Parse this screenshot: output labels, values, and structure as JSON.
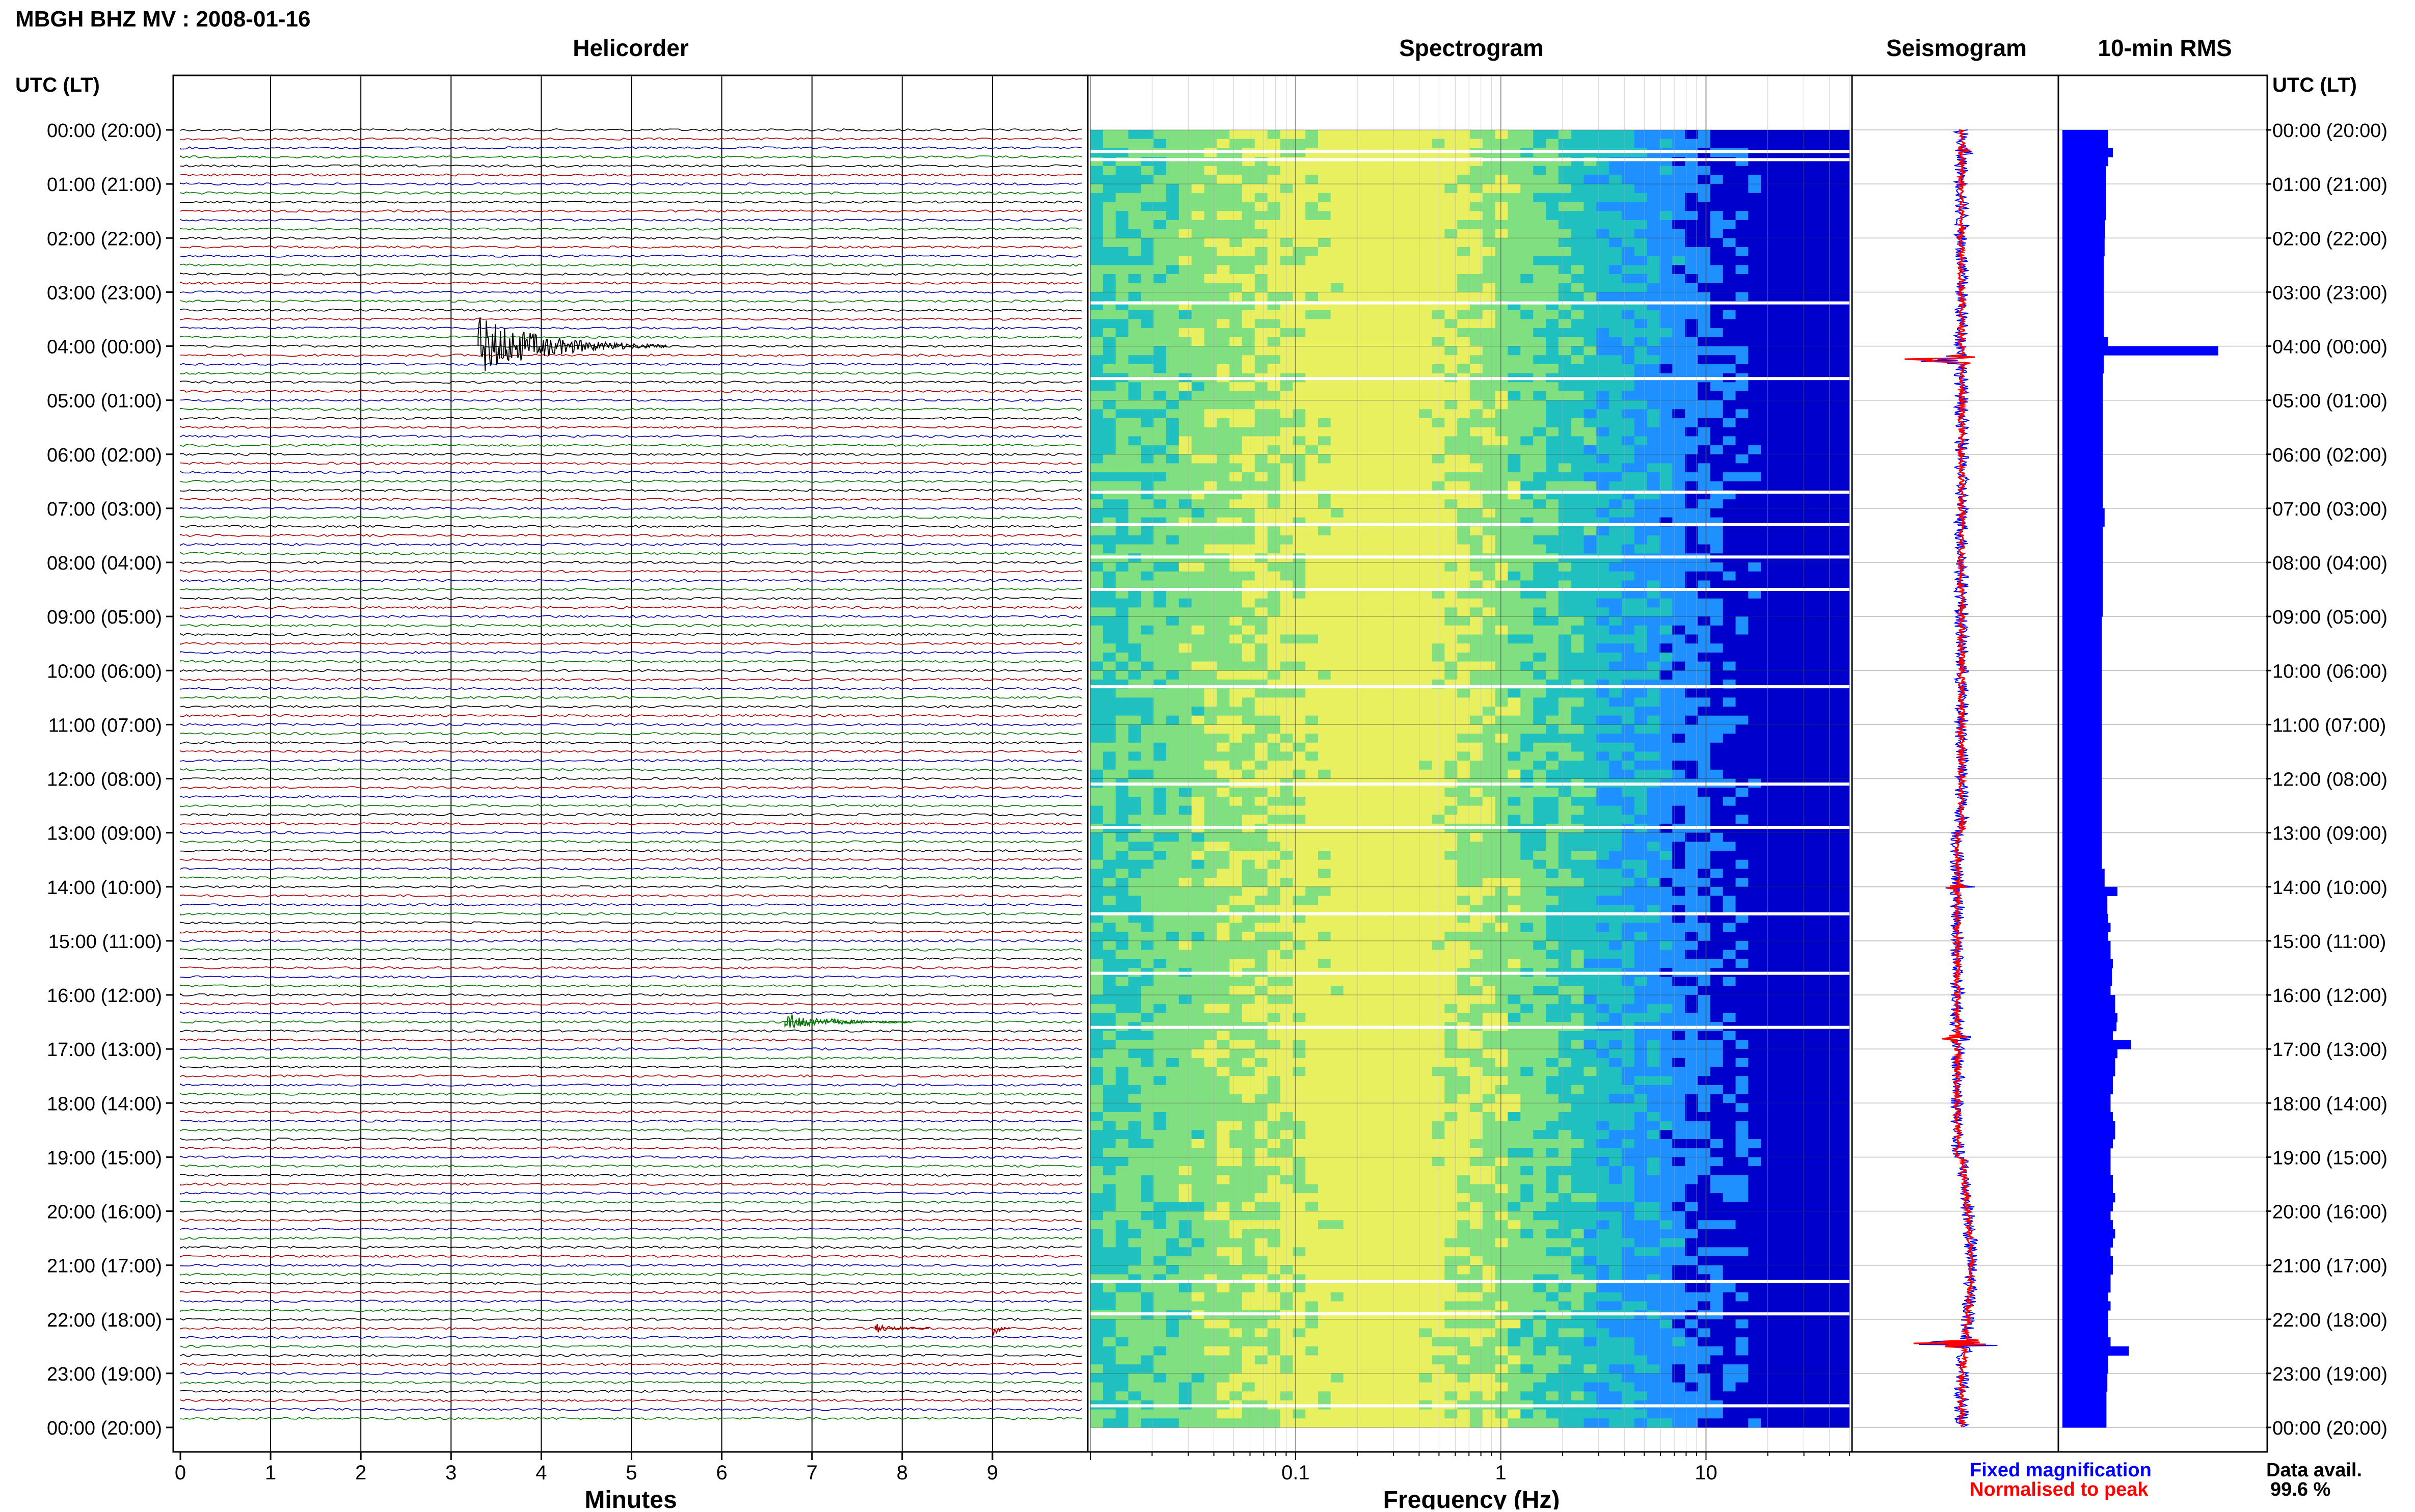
{
  "header": {
    "title": "MBGH BHZ MV : 2008-01-16"
  },
  "chart_data": [
    {
      "type": "line",
      "title": "Helicorder",
      "xlabel": "Minutes",
      "ylabel": "UTC (LT)",
      "xlim": [
        0,
        10
      ],
      "x_ticks": [
        "0",
        "1",
        "2",
        "3",
        "4",
        "5",
        "6",
        "7",
        "8",
        "9"
      ],
      "row_minutes": 10,
      "rows_per_hour": 6,
      "trace_colors": [
        "#000000",
        "#aa0000",
        "#0000aa",
        "#007700"
      ],
      "y_ticks_left": [
        "00:00 (20:00)",
        "01:00 (21:00)",
        "02:00 (22:00)",
        "03:00 (23:00)",
        "04:00 (00:00)",
        "05:00 (01:00)",
        "06:00 (02:00)",
        "07:00 (03:00)",
        "08:00 (04:00)",
        "09:00 (05:00)",
        "10:00 (06:00)",
        "11:00 (07:00)",
        "12:00 (08:00)",
        "13:00 (09:00)",
        "14:00 (10:00)",
        "15:00 (11:00)",
        "16:00 (12:00)",
        "17:00 (13:00)",
        "18:00 (14:00)",
        "19:00 (15:00)",
        "20:00 (16:00)",
        "21:00 (17:00)",
        "22:00 (18:00)",
        "23:00 (19:00)",
        "00:00 (20:00)"
      ],
      "events": [
        {
          "hour": 4,
          "minute_start": 3.3,
          "minute_end": 5.4,
          "amplitude": "large"
        },
        {
          "hour": 16.5,
          "minute_start": 6.7,
          "minute_end": 8.1,
          "amplitude": "medium"
        },
        {
          "hour": 22.2,
          "minute_start": 7.7,
          "minute_end": 8.3,
          "amplitude": "small"
        },
        {
          "hour": 22.2,
          "minute_start": 9.0,
          "minute_end": 9.2,
          "amplitude": "medium"
        }
      ]
    },
    {
      "type": "heatmap",
      "title": "Spectrogram",
      "xlabel": "Frequency (Hz)",
      "x_scale": "log",
      "xlim": [
        0.01,
        50
      ],
      "x_ticks": [
        "0.1",
        "1",
        "10"
      ],
      "ylim_hours": [
        0,
        24
      ],
      "colormap": [
        "#0000cc",
        "#1e90ff",
        "#20c0c0",
        "#80e080",
        "#e8f060"
      ],
      "peak_frequency_hz": 0.3,
      "data_gap_hours": [
        0.4,
        0.55,
        3.2,
        4.6,
        6.7,
        7.3,
        7.9,
        8.5,
        10.3,
        12.1,
        12.9,
        14.5,
        15.6,
        16.6,
        21.3,
        21.9,
        23.6
      ]
    },
    {
      "type": "line",
      "title": "Seismogram",
      "series": [
        {
          "name": "Fixed magnification",
          "color": "#0000ff"
        },
        {
          "name": "Normalised to peak",
          "color": "#ff0000"
        }
      ],
      "ylim_hours": [
        0,
        24
      ]
    },
    {
      "type": "bar",
      "title": "10-min RMS",
      "orientation": "horizontal",
      "color": "#0000ff",
      "ylim_hours": [
        0,
        24
      ],
      "ylabel": "UTC (LT)",
      "bin_minutes": 10,
      "relative_values_per_hour": [
        [
          1.0,
          1.0,
          1.1,
          1.0,
          0.95,
          0.95
        ],
        [
          0.95,
          0.95,
          0.95,
          0.95,
          0.93,
          0.93
        ],
        [
          0.92,
          0.92,
          0.9,
          0.9,
          0.9,
          0.9
        ],
        [
          0.9,
          0.9,
          0.9,
          0.9,
          0.9,
          1.0
        ],
        [
          3.4,
          0.9,
          0.9,
          0.88,
          0.88,
          0.88
        ],
        [
          0.88,
          0.88,
          0.88,
          0.88,
          0.88,
          0.88
        ],
        [
          0.88,
          0.88,
          0.88,
          0.88,
          0.88,
          0.88
        ],
        [
          0.92,
          0.92,
          0.88,
          0.88,
          0.88,
          0.88
        ],
        [
          0.88,
          0.88,
          0.88,
          0.88,
          0.88,
          0.88
        ],
        [
          0.86,
          0.86,
          0.86,
          0.86,
          0.86,
          0.86
        ],
        [
          0.86,
          0.86,
          0.86,
          0.86,
          0.86,
          0.86
        ],
        [
          0.86,
          0.86,
          0.86,
          0.86,
          0.86,
          0.86
        ],
        [
          0.86,
          0.86,
          0.86,
          0.86,
          0.86,
          0.86
        ],
        [
          0.86,
          0.86,
          0.86,
          0.86,
          0.92,
          0.92
        ],
        [
          1.2,
          0.98,
          0.98,
          1.0,
          1.05,
          1.0
        ],
        [
          1.05,
          1.05,
          1.1,
          1.08,
          1.08,
          1.05
        ],
        [
          1.15,
          1.15,
          1.2,
          1.18,
          1.1,
          1.5
        ],
        [
          1.2,
          1.15,
          1.15,
          1.1,
          1.1,
          1.05
        ],
        [
          1.05,
          1.1,
          1.15,
          1.15,
          1.1,
          1.05
        ],
        [
          1.05,
          1.05,
          1.1,
          1.1,
          1.15,
          1.1
        ],
        [
          1.05,
          1.1,
          1.15,
          1.1,
          1.05,
          1.1
        ],
        [
          1.1,
          1.05,
          1.05,
          1.0,
          1.05,
          1.0
        ],
        [
          1.0,
          1.0,
          1.05,
          1.45,
          1.0,
          1.0
        ],
        [
          0.98,
          0.98,
          0.96,
          0.96,
          0.96,
          0.96
        ]
      ],
      "y_ticks_right": [
        "00:00 (20:00)",
        "01:00 (21:00)",
        "02:00 (22:00)",
        "03:00 (23:00)",
        "04:00 (00:00)",
        "05:00 (01:00)",
        "06:00 (02:00)",
        "07:00 (03:00)",
        "08:00 (04:00)",
        "09:00 (05:00)",
        "10:00 (06:00)",
        "11:00 (07:00)",
        "12:00 (08:00)",
        "13:00 (09:00)",
        "14:00 (10:00)",
        "15:00 (11:00)",
        "16:00 (12:00)",
        "17:00 (13:00)",
        "18:00 (14:00)",
        "19:00 (15:00)",
        "20:00 (16:00)",
        "21:00 (17:00)",
        "22:00 (18:00)",
        "23:00 (19:00)",
        "00:00 (20:00)"
      ]
    }
  ],
  "legend": {
    "fixed_label": "Fixed magnification",
    "fixed_color": "#0000ff",
    "normalised_label": "Normalised to peak",
    "normalised_color": "#ff0000"
  },
  "availability": {
    "label": "Data avail.",
    "value": "99.6 %"
  }
}
